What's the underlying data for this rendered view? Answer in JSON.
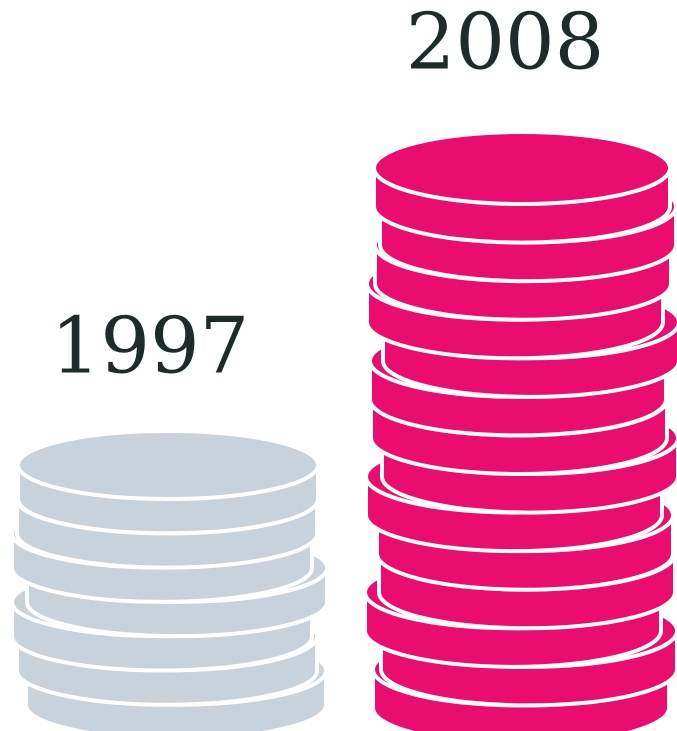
{
  "chart_data": {
    "type": "pictograph",
    "categories": [
      "1997",
      "2008"
    ],
    "values": [
      7,
      14
    ],
    "colors": [
      "#c7d2da",
      "#ea0c6e"
    ]
  }
}
